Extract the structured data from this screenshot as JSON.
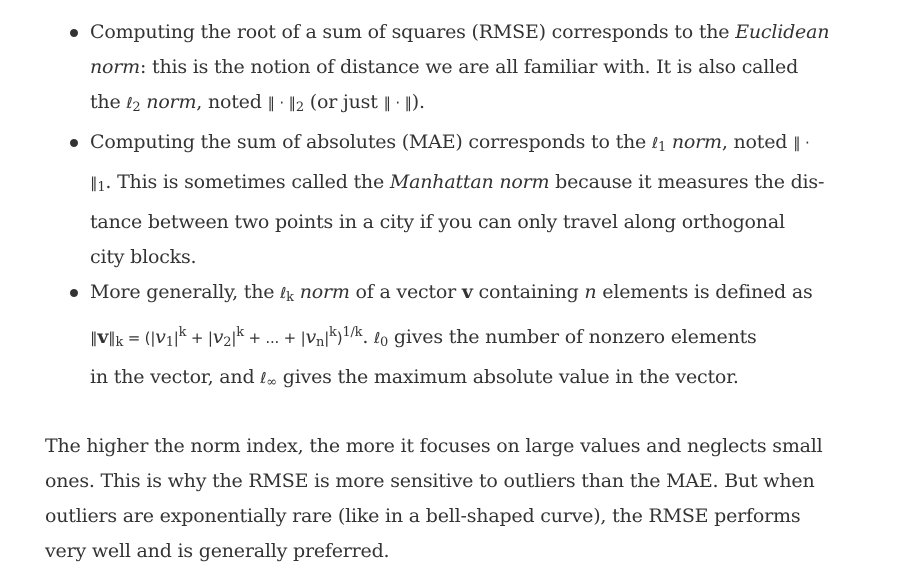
{
  "bullets": [
    {
      "lines": [
        [
          "Computing the root of a sum of squares (RMSE) corresponds to the ",
          {
            "em": "Euclidean"
          }
        ],
        [
          {
            "em": "norm"
          },
          ": this is the notion of distance we are all familiar with. It is also called"
        ],
        [
          "the ",
          {
            "math": "ℓ"
          },
          {
            "sub": "2"
          },
          " ",
          {
            "em": "norm"
          },
          ", noted ",
          {
            "math": "∥ · ∥"
          },
          {
            "sub": "2"
          },
          " (or just ",
          {
            "math": "∥ · ∥"
          },
          ")."
        ]
      ]
    },
    {
      "lines": [
        [
          "Computing the sum of absolutes (MAE) corresponds to the ",
          {
            "math": "ℓ"
          },
          {
            "sub": "1"
          },
          " ",
          {
            "em": "norm"
          },
          ", noted ",
          {
            "math": "∥ ·"
          }
        ],
        [
          {
            "math": "∥"
          },
          {
            "sub": "1"
          },
          ". This is sometimes called the ",
          {
            "em": "Manhattan norm"
          },
          " because it measures the dis-"
        ],
        [
          "tance between two points in a city if you can only travel along orthogonal"
        ],
        [
          "city blocks."
        ]
      ]
    },
    {
      "lines": [
        [
          "More generally, the ",
          {
            "math": "ℓ"
          },
          {
            "sub": "k"
          },
          " ",
          {
            "em": "norm"
          },
          " of a vector ",
          {
            "bold": "v"
          },
          " containing ",
          {
            "em": "n"
          },
          " elements is defined as"
        ],
        [
          {
            "math": "∥"
          },
          {
            "bold": "v"
          },
          {
            "math": "∥"
          },
          {
            "sub": "k"
          },
          {
            "math": " = (|"
          },
          {
            "em": "v"
          },
          {
            "sub": "1"
          },
          {
            "math": "|"
          },
          {
            "sup": "k"
          },
          {
            "math": " + |"
          },
          {
            "em": "v"
          },
          {
            "sub": "2"
          },
          {
            "math": "|"
          },
          {
            "sup": "k"
          },
          {
            "math": " + ... + |"
          },
          {
            "em": "v"
          },
          {
            "sub": "n"
          },
          {
            "math": "|"
          },
          {
            "sup": "k"
          },
          {
            "math": ")"
          },
          {
            "sup": "1/k"
          },
          ". ",
          {
            "math": "ℓ"
          },
          {
            "sub": "0"
          },
          " gives the number of nonzero elements"
        ],
        [
          "in the vector, and ",
          {
            "math": "ℓ"
          },
          {
            "sub": "∞"
          },
          " gives the maximum absolute value in the vector."
        ]
      ]
    }
  ],
  "paragraph": {
    "lines": [
      "The higher the norm index, the more it focuses on large values and neglects small",
      "ones. This is why the RMSE is more sensitive to outliers than the MAE. But when",
      "outliers are exponentially rare (like in a bell-shaped curve), the RMSE performs",
      "very well and is generally preferred."
    ]
  }
}
